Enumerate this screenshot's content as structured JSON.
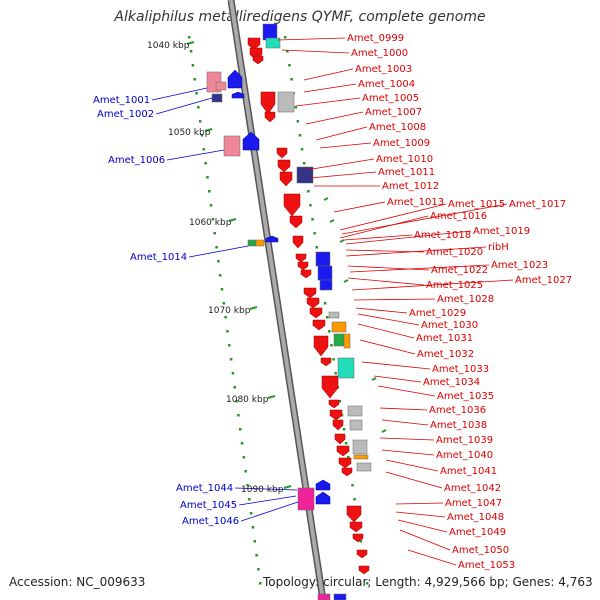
{
  "title": "Alkaliphilus metalliredigens QYMF, complete genome",
  "footer": {
    "accession": "Accession: NC_009633",
    "topology": "Topology: circular; Length: 4,929,566 bp; Genes: 4,763"
  },
  "colors": {
    "forward_label": "#0000cc",
    "reverse_label": "#dd0000",
    "backbone": "#888888",
    "ruler": "#229922",
    "gene_red": "#ee1111",
    "gene_blue": "#1a1aee",
    "gene_pink": "#ee8899",
    "gene_grey": "#bbbbbb",
    "gene_navy": "#333388",
    "gene_orange": "#ff9900",
    "gene_green": "#22aa44",
    "gene_cyan": "#22ddbb",
    "gene_magenta": "#ee2299"
  },
  "ruler_labels": [
    "1040 kbp",
    "1050 kbp",
    "1060 kbp",
    "1070 kbp",
    "1080 kbp",
    "1090 kbp"
  ],
  "forward_genes": [
    "Amet_1001",
    "Amet_1002",
    "Amet_1006",
    "Amet_1014",
    "Amet_1044",
    "Amet_1045",
    "Amet_1046"
  ],
  "reverse_genes": [
    "Amet_0999",
    "Amet_1000",
    "Amet_1003",
    "Amet_1004",
    "Amet_1005",
    "Amet_1007",
    "Amet_1008",
    "Amet_1009",
    "Amet_1010",
    "Amet_1011",
    "Amet_1012",
    "Amet_1013",
    "Amet_1015",
    "Amet_1017",
    "Amet_1016",
    "Amet_1018",
    "Amet_1019",
    "Amet_1020",
    "ribH",
    "Amet_1022",
    "Amet_1023",
    "Amet_1025",
    "Amet_1027",
    "Amet_1028",
    "Amet_1029",
    "Amet_1030",
    "Amet_1031",
    "Amet_1032",
    "Amet_1033",
    "Amet_1034",
    "Amet_1035",
    "Amet_1036",
    "Amet_1038",
    "Amet_1039",
    "Amet_1040",
    "Amet_1041",
    "Amet_1042",
    "Amet_1047",
    "Amet_1048",
    "Amet_1049",
    "Amet_1050",
    "Amet_1053"
  ]
}
